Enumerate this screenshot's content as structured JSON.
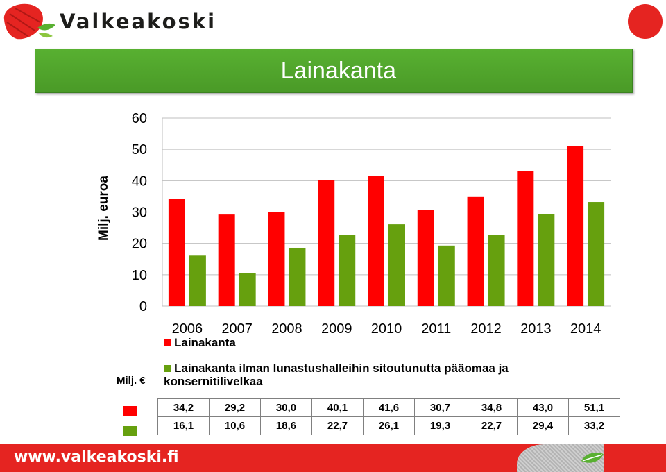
{
  "logo": {
    "text": "Valkeakoski"
  },
  "title": "Lainakanta",
  "footer": {
    "url": "www.valkeakoski.fi"
  },
  "unit_label": "Milj. €",
  "colors": {
    "red": "#ff0000",
    "green": "#66a00e",
    "title_green": "#58b031",
    "brand_red": "#e52421"
  },
  "chart_data": {
    "type": "bar",
    "title": "Lainakanta",
    "ylabel": "Milj. euroa",
    "categories": [
      "2006",
      "2007",
      "2008",
      "2009",
      "2010",
      "2011",
      "2012",
      "2013",
      "2014"
    ],
    "ylim": [
      0,
      60
    ],
    "yticks": [
      0,
      10,
      20,
      30,
      40,
      50,
      60
    ],
    "grid": true,
    "series": [
      {
        "name": "Lainakanta",
        "values": [
          34.2,
          29.2,
          30.0,
          40.1,
          41.6,
          30.7,
          34.8,
          43.0,
          51.1
        ],
        "labels": [
          "34,2",
          "29,2",
          "30,0",
          "40,1",
          "41,6",
          "30,7",
          "34,8",
          "43,0",
          "51,1"
        ]
      },
      {
        "name": "Lainakanta ilman lunastushalleihin sitoutunutta pääomaa ja konsernitilivelkaa",
        "values": [
          16.1,
          10.6,
          18.6,
          22.7,
          26.1,
          19.3,
          22.7,
          29.4,
          33.2
        ],
        "labels": [
          "16,1",
          "10,6",
          "18,6",
          "22,7",
          "26,1",
          "19,3",
          "22,7",
          "29,4",
          "33,2"
        ]
      }
    ]
  }
}
